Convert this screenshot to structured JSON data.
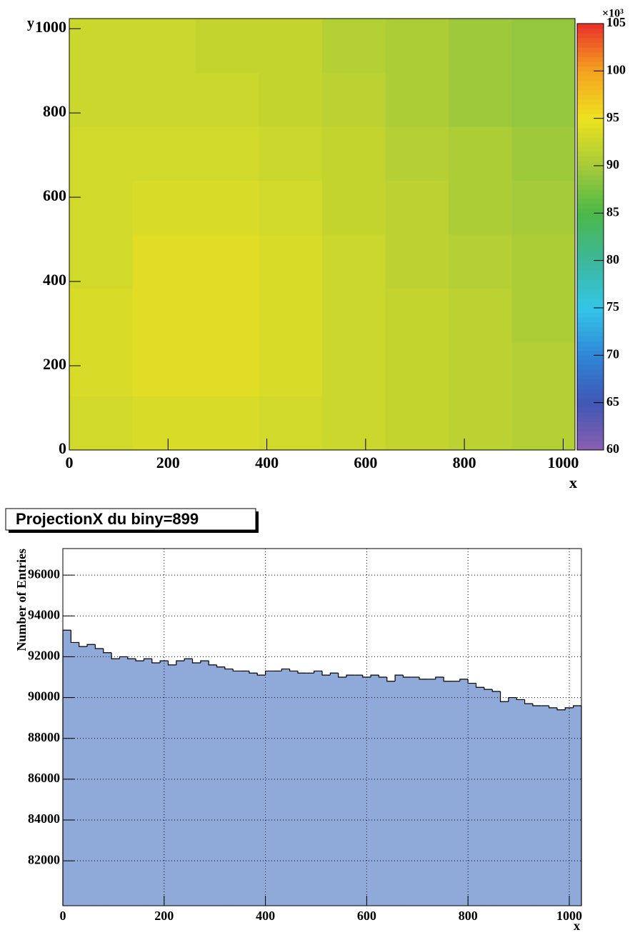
{
  "chart_data": [
    {
      "type": "heatmap",
      "x_label": "x",
      "y_label": "y",
      "z_multiplier": "×10³",
      "xbins": [
        0,
        128,
        256,
        384,
        512,
        640,
        768,
        896,
        1024
      ],
      "ybins": [
        0,
        128,
        256,
        384,
        512,
        640,
        768,
        896,
        1024
      ],
      "z": [
        [
          93,
          93.5,
          93.5,
          93,
          92.5,
          92,
          91.5,
          91
        ],
        [
          93.5,
          94,
          94,
          93.5,
          92.5,
          92,
          91.5,
          91
        ],
        [
          93.5,
          94,
          94,
          93.5,
          92.5,
          92,
          91.5,
          90.5
        ],
        [
          93,
          94,
          94,
          93.5,
          92.5,
          91.5,
          91,
          90.5
        ],
        [
          93,
          93.5,
          93.5,
          93,
          92,
          91.5,
          90.5,
          90
        ],
        [
          93,
          93,
          93,
          92.5,
          92,
          91,
          90.5,
          89.5
        ],
        [
          92.5,
          92.5,
          92.5,
          92,
          91.5,
          90.5,
          89.5,
          89
        ],
        [
          92.5,
          92.5,
          92,
          92,
          91,
          90.5,
          89.5,
          89
        ]
      ],
      "xlim": [
        0,
        1024
      ],
      "ylim": [
        0,
        1024
      ],
      "xticks": [
        0,
        200,
        400,
        600,
        800,
        1000
      ],
      "yticks": [
        0,
        200,
        400,
        600,
        800,
        1000
      ],
      "zlim": [
        60,
        105
      ],
      "zticks": [
        60,
        65,
        70,
        75,
        80,
        85,
        90,
        95,
        100,
        105
      ],
      "palette": [
        "#8a5fb0",
        "#3f57b4",
        "#2f86d8",
        "#34c6e8",
        "#3cb79a",
        "#4cb848",
        "#a6cb3a",
        "#eee21f",
        "#f5a21f",
        "#e8302a"
      ]
    },
    {
      "type": "histogram",
      "title": "ProjectionX du biny=899",
      "x_label": "x",
      "y_label": "Number of Entries",
      "bins": [
        0,
        16,
        32,
        48,
        64,
        80,
        96,
        112,
        128,
        144,
        160,
        176,
        192,
        208,
        224,
        240,
        256,
        272,
        288,
        304,
        320,
        336,
        352,
        368,
        384,
        400,
        416,
        432,
        448,
        464,
        480,
        496,
        512,
        528,
        544,
        560,
        576,
        592,
        608,
        624,
        640,
        656,
        672,
        688,
        704,
        720,
        736,
        752,
        768,
        784,
        800,
        816,
        832,
        848,
        864,
        880,
        896,
        912,
        928,
        944,
        960,
        976,
        992,
        1008,
        1024
      ],
      "values": [
        93300,
        92700,
        92500,
        92600,
        92400,
        92200,
        91900,
        92000,
        91900,
        91800,
        91900,
        91700,
        91800,
        91600,
        91800,
        91900,
        91700,
        91800,
        91600,
        91500,
        91400,
        91300,
        91300,
        91200,
        91100,
        91300,
        91300,
        91400,
        91300,
        91200,
        91200,
        91300,
        91100,
        91200,
        91000,
        91100,
        91100,
        91000,
        91100,
        91000,
        90800,
        91100,
        91000,
        91000,
        90900,
        90900,
        91000,
        90800,
        90800,
        90900,
        90700,
        90500,
        90400,
        90300,
        89800,
        90000,
        89900,
        89700,
        89600,
        89600,
        89500,
        89400,
        89500,
        89600
      ],
      "color": "#8fa9d8",
      "xlim": [
        0,
        1024
      ],
      "ylim": [
        79800,
        97300
      ],
      "xticks": [
        0,
        200,
        400,
        600,
        800,
        1000
      ],
      "yticks": [
        82000,
        84000,
        86000,
        88000,
        90000,
        92000,
        94000,
        96000
      ],
      "grid": true
    }
  ]
}
